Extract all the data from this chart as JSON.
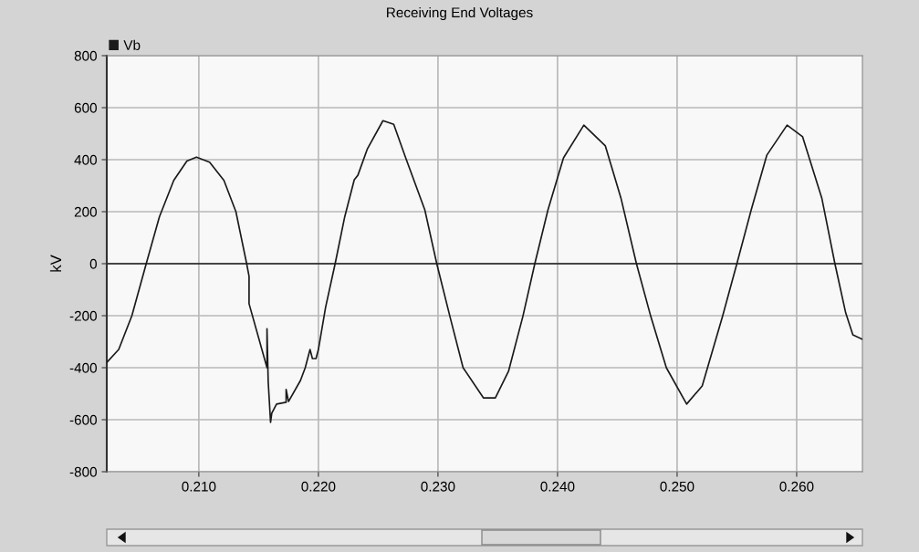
{
  "chart_data": {
    "type": "line",
    "title": "Receiving End Voltages",
    "ylabel": "kV",
    "x": [
      0.2023,
      0.2033,
      0.2044,
      0.2056,
      0.2067,
      0.2079,
      0.209,
      0.2098,
      0.2109,
      0.2121,
      0.2131,
      0.214,
      0.2142,
      0.2142,
      0.2157,
      0.2157,
      0.2158,
      0.216,
      0.2161,
      0.2165,
      0.2173,
      0.2173,
      0.2175,
      0.2185,
      0.2189,
      0.2193,
      0.2195,
      0.2198,
      0.22,
      0.2206,
      0.2214,
      0.2222,
      0.223,
      0.2233,
      0.2241,
      0.2254,
      0.2263,
      0.2273,
      0.2289,
      0.2299,
      0.231,
      0.2321,
      0.2338,
      0.2348,
      0.2359,
      0.2371,
      0.2381,
      0.2392,
      0.2405,
      0.2422,
      0.244,
      0.2453,
      0.2466,
      0.2478,
      0.2491,
      0.2508,
      0.2521,
      0.2538,
      0.255,
      0.2562,
      0.2575,
      0.2592,
      0.2605,
      0.2621,
      0.2632,
      0.2641,
      0.2647,
      0.2655
    ],
    "series": [
      {
        "name": "Vb",
        "color": "#1a1a1a",
        "values": [
          -380,
          -330,
          -200,
          0,
          180,
          320,
          395,
          410,
          390,
          320,
          200,
          0,
          -49,
          -154,
          -400,
          -250,
          -453,
          -610,
          -575,
          -540,
          -533,
          -484,
          -530,
          -449,
          -400,
          -330,
          -365,
          -365,
          -330,
          -168,
          0,
          180,
          323,
          340,
          442,
          550,
          536,
          407,
          207,
          0,
          -203,
          -400,
          -516,
          -516,
          -414,
          -203,
          0,
          207,
          407,
          533,
          453,
          253,
          0,
          -203,
          -400,
          -540,
          -470,
          -203,
          0,
          207,
          417,
          533,
          488,
          253,
          0,
          -189,
          -274,
          -291
        ]
      }
    ],
    "xlim": [
      0.2023,
      0.2655
    ],
    "xticks": [
      {
        "value": 0.21,
        "label": "0.210"
      },
      {
        "value": 0.22,
        "label": "0.220"
      },
      {
        "value": 0.23,
        "label": "0.230"
      },
      {
        "value": 0.24,
        "label": "0.240"
      },
      {
        "value": 0.25,
        "label": "0.250"
      },
      {
        "value": 0.26,
        "label": "0.260"
      }
    ],
    "ylim": [
      -800,
      800
    ],
    "yticks": [
      -800,
      -600,
      -400,
      -200,
      0,
      200,
      400,
      600,
      800
    ],
    "ref_lines": [
      {
        "axis": "y",
        "value": 0,
        "color": "#1a1a1a"
      }
    ],
    "grid": true,
    "legend": "top left",
    "line_style": "solid",
    "marker": "none"
  }
}
